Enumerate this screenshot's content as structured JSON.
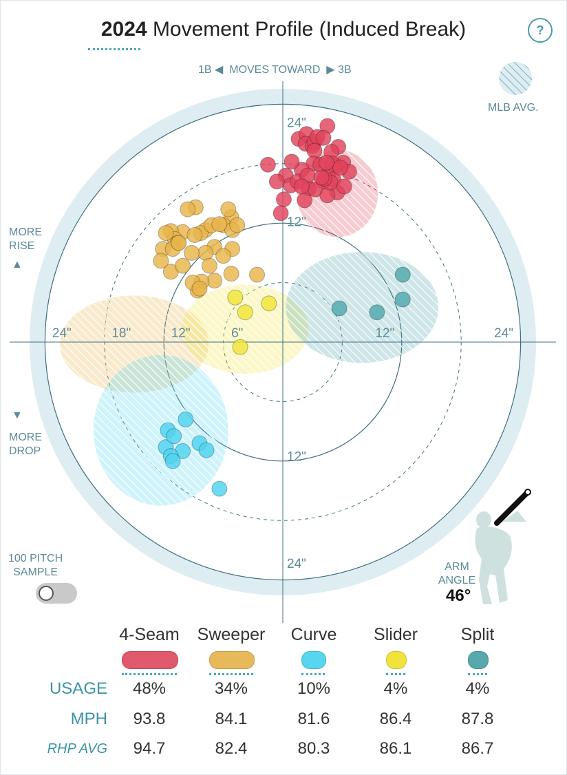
{
  "header": {
    "title_year": "2024",
    "title_rest": "Movement Profile (Induced Break)",
    "help_label": "?"
  },
  "labels": {
    "first_base": "1B",
    "moves_toward": "MOVES TOWARD",
    "third_base": "3B",
    "mlb_avg": "MLB AVG.",
    "more_rise": [
      "MORE",
      "RISE"
    ],
    "more_drop": [
      "MORE",
      "DROP"
    ],
    "sample": [
      "100 PITCH",
      "SAMPLE"
    ],
    "arm_angle_label": [
      "ARM",
      "ANGLE"
    ],
    "arm_angle_value": "46°"
  },
  "icons": {
    "rise": "up-triangle-icon",
    "drop": "down-triangle-icon",
    "left_arrow": "triangle-left-icon",
    "right_arrow": "triangle-right-icon"
  },
  "colors": {
    "four_seam": "#e0435b",
    "sweeper": "#e8b54a",
    "curve": "#4fd3ef",
    "slider": "#f0e437",
    "split": "#4fa7ad",
    "field_ring": "#deedf2",
    "accent": "#3b94a6"
  },
  "chart_data": {
    "type": "scatter",
    "title": "2024 Movement Profile (Induced Break)",
    "units": "inches",
    "xlim": [
      -25,
      25
    ],
    "ylim": [
      -25,
      25
    ],
    "x_tick_labels": [
      "24\"",
      "18\"",
      "12\"",
      "6\"",
      "12\"",
      "24\""
    ],
    "y_tick_labels": [
      "24\"",
      "12\"",
      "12\"",
      "24\""
    ],
    "series": [
      {
        "name": "4-Seam",
        "color": "#e0435b",
        "mlb_avg": {
          "x": 5.5,
          "y": 15.0,
          "rx": 4.1,
          "ry": 4.4
        },
        "points": [
          [
            1.6,
            20.5
          ],
          [
            2.4,
            21.0
          ],
          [
            2.3,
            20.0
          ],
          [
            3.0,
            19.8
          ],
          [
            3.2,
            20.2
          ],
          [
            4.5,
            21.8
          ],
          [
            5.6,
            19.7
          ],
          [
            4.9,
            19.2
          ],
          [
            3.5,
            20.7
          ],
          [
            3.2,
            19.3
          ],
          [
            4.1,
            20.6
          ],
          [
            3.1,
            18.0
          ],
          [
            1.9,
            17.4
          ],
          [
            5.4,
            17.8
          ],
          [
            4.6,
            17.0
          ],
          [
            3.8,
            17.9
          ],
          [
            4.1,
            16.2
          ],
          [
            5.1,
            16.4
          ],
          [
            6.1,
            18.1
          ],
          [
            5.0,
            18.0
          ],
          [
            6.7,
            17.2
          ],
          [
            0.3,
            16.8
          ],
          [
            -1.5,
            17.9
          ],
          [
            0.8,
            15.8
          ],
          [
            1.5,
            16.2
          ],
          [
            2.6,
            15.5
          ],
          [
            3.3,
            15.4
          ],
          [
            5.5,
            15.1
          ],
          [
            4.5,
            14.8
          ],
          [
            4.8,
            16.1
          ],
          [
            6.2,
            15.7
          ],
          [
            0.9,
            18.2
          ],
          [
            -0.6,
            16.2
          ],
          [
            0.1,
            14.4
          ],
          [
            2.2,
            14.3
          ],
          [
            -0.2,
            13.0
          ],
          [
            2.5,
            16.8
          ],
          [
            1.9,
            15.7
          ],
          [
            4.2,
            16.5
          ],
          [
            5.8,
            17.6
          ],
          [
            3.9,
            16.6
          ],
          [
            4.4,
            18.1
          ]
        ]
      },
      {
        "name": "Sweeper",
        "color": "#e8b54a",
        "mlb_avg": {
          "x": -15.0,
          "y": -0.2,
          "rx": 7.5,
          "ry": 4.9
        },
        "points": [
          [
            -8.8,
            13.6
          ],
          [
            -5.2,
            12.6
          ],
          [
            -7.8,
            11.3
          ],
          [
            -5.5,
            13.4
          ],
          [
            -6.0,
            11.8
          ],
          [
            -10.1,
            11.1
          ],
          [
            -8.3,
            11.0
          ],
          [
            -11.3,
            11.2
          ],
          [
            -10.9,
            10.4
          ],
          [
            -8.9,
            10.8
          ],
          [
            -5.1,
            11.3
          ],
          [
            -4.6,
            11.8
          ],
          [
            -7.2,
            11.8
          ],
          [
            -5.1,
            9.4
          ],
          [
            -6.9,
            9.6
          ],
          [
            -7.8,
            9.0
          ],
          [
            -9.2,
            9.0
          ],
          [
            -12.1,
            9.4
          ],
          [
            -10.6,
            10.0
          ],
          [
            -11.1,
            9.4
          ],
          [
            -11.3,
            7.1
          ],
          [
            -12.3,
            8.2
          ],
          [
            -10.1,
            7.7
          ],
          [
            -7.4,
            7.7
          ],
          [
            -6.9,
            6.2
          ],
          [
            -8.2,
            6.1
          ],
          [
            -8.6,
            5.2
          ],
          [
            -9.1,
            6.0
          ],
          [
            -6.0,
            8.7
          ],
          [
            -5.2,
            6.9
          ],
          [
            -2.6,
            6.8
          ],
          [
            -10.5,
            10.0
          ],
          [
            -6.4,
            11.9
          ],
          [
            -9.6,
            13.4
          ],
          [
            -11.8,
            11.0
          ],
          [
            -8.4,
            5.4
          ]
        ]
      },
      {
        "name": "Curve",
        "color": "#4fd3ef",
        "mlb_avg": {
          "x": -12.3,
          "y": -8.9,
          "rx": 6.8,
          "ry": 7.6
        },
        "points": [
          [
            -9.8,
            -7.8
          ],
          [
            -11.6,
            -8.9
          ],
          [
            -11.8,
            -10.6
          ],
          [
            -11.0,
            -9.5
          ],
          [
            -10.1,
            -11.0
          ],
          [
            -11.3,
            -11.5
          ],
          [
            -8.4,
            -10.2
          ],
          [
            -7.7,
            -10.9
          ],
          [
            -11.1,
            -12.0
          ],
          [
            -6.4,
            -14.8
          ]
        ]
      },
      {
        "name": "Slider",
        "color": "#f0e437",
        "mlb_avg": {
          "x": -3.8,
          "y": 1.3,
          "rx": 6.4,
          "ry": 4.5
        },
        "points": [
          [
            -4.8,
            4.5
          ],
          [
            -1.4,
            3.9
          ],
          [
            -3.8,
            3.0
          ],
          [
            -4.3,
            -0.5
          ]
        ]
      },
      {
        "name": "Split",
        "color": "#4fa7ad",
        "mlb_avg": {
          "x": 8.0,
          "y": 3.5,
          "rx": 7.7,
          "ry": 5.6
        },
        "points": [
          [
            12.1,
            6.8
          ],
          [
            12.1,
            4.3
          ],
          [
            5.7,
            3.4
          ],
          [
            9.5,
            3.0
          ]
        ]
      }
    ]
  },
  "table": {
    "pitch_names": [
      "4-Seam",
      "Sweeper",
      "Curve",
      "Slider",
      "Split"
    ],
    "usage_label": "USAGE",
    "usage": [
      "48%",
      "34%",
      "10%",
      "4%",
      "4%"
    ],
    "mph_label": "MPH",
    "mph": [
      "93.8",
      "84.1",
      "81.6",
      "86.4",
      "87.8"
    ],
    "rhp_label": "RHP AVG",
    "rhp_avg": [
      "94.7",
      "82.4",
      "80.3",
      "86.1",
      "86.7"
    ]
  }
}
